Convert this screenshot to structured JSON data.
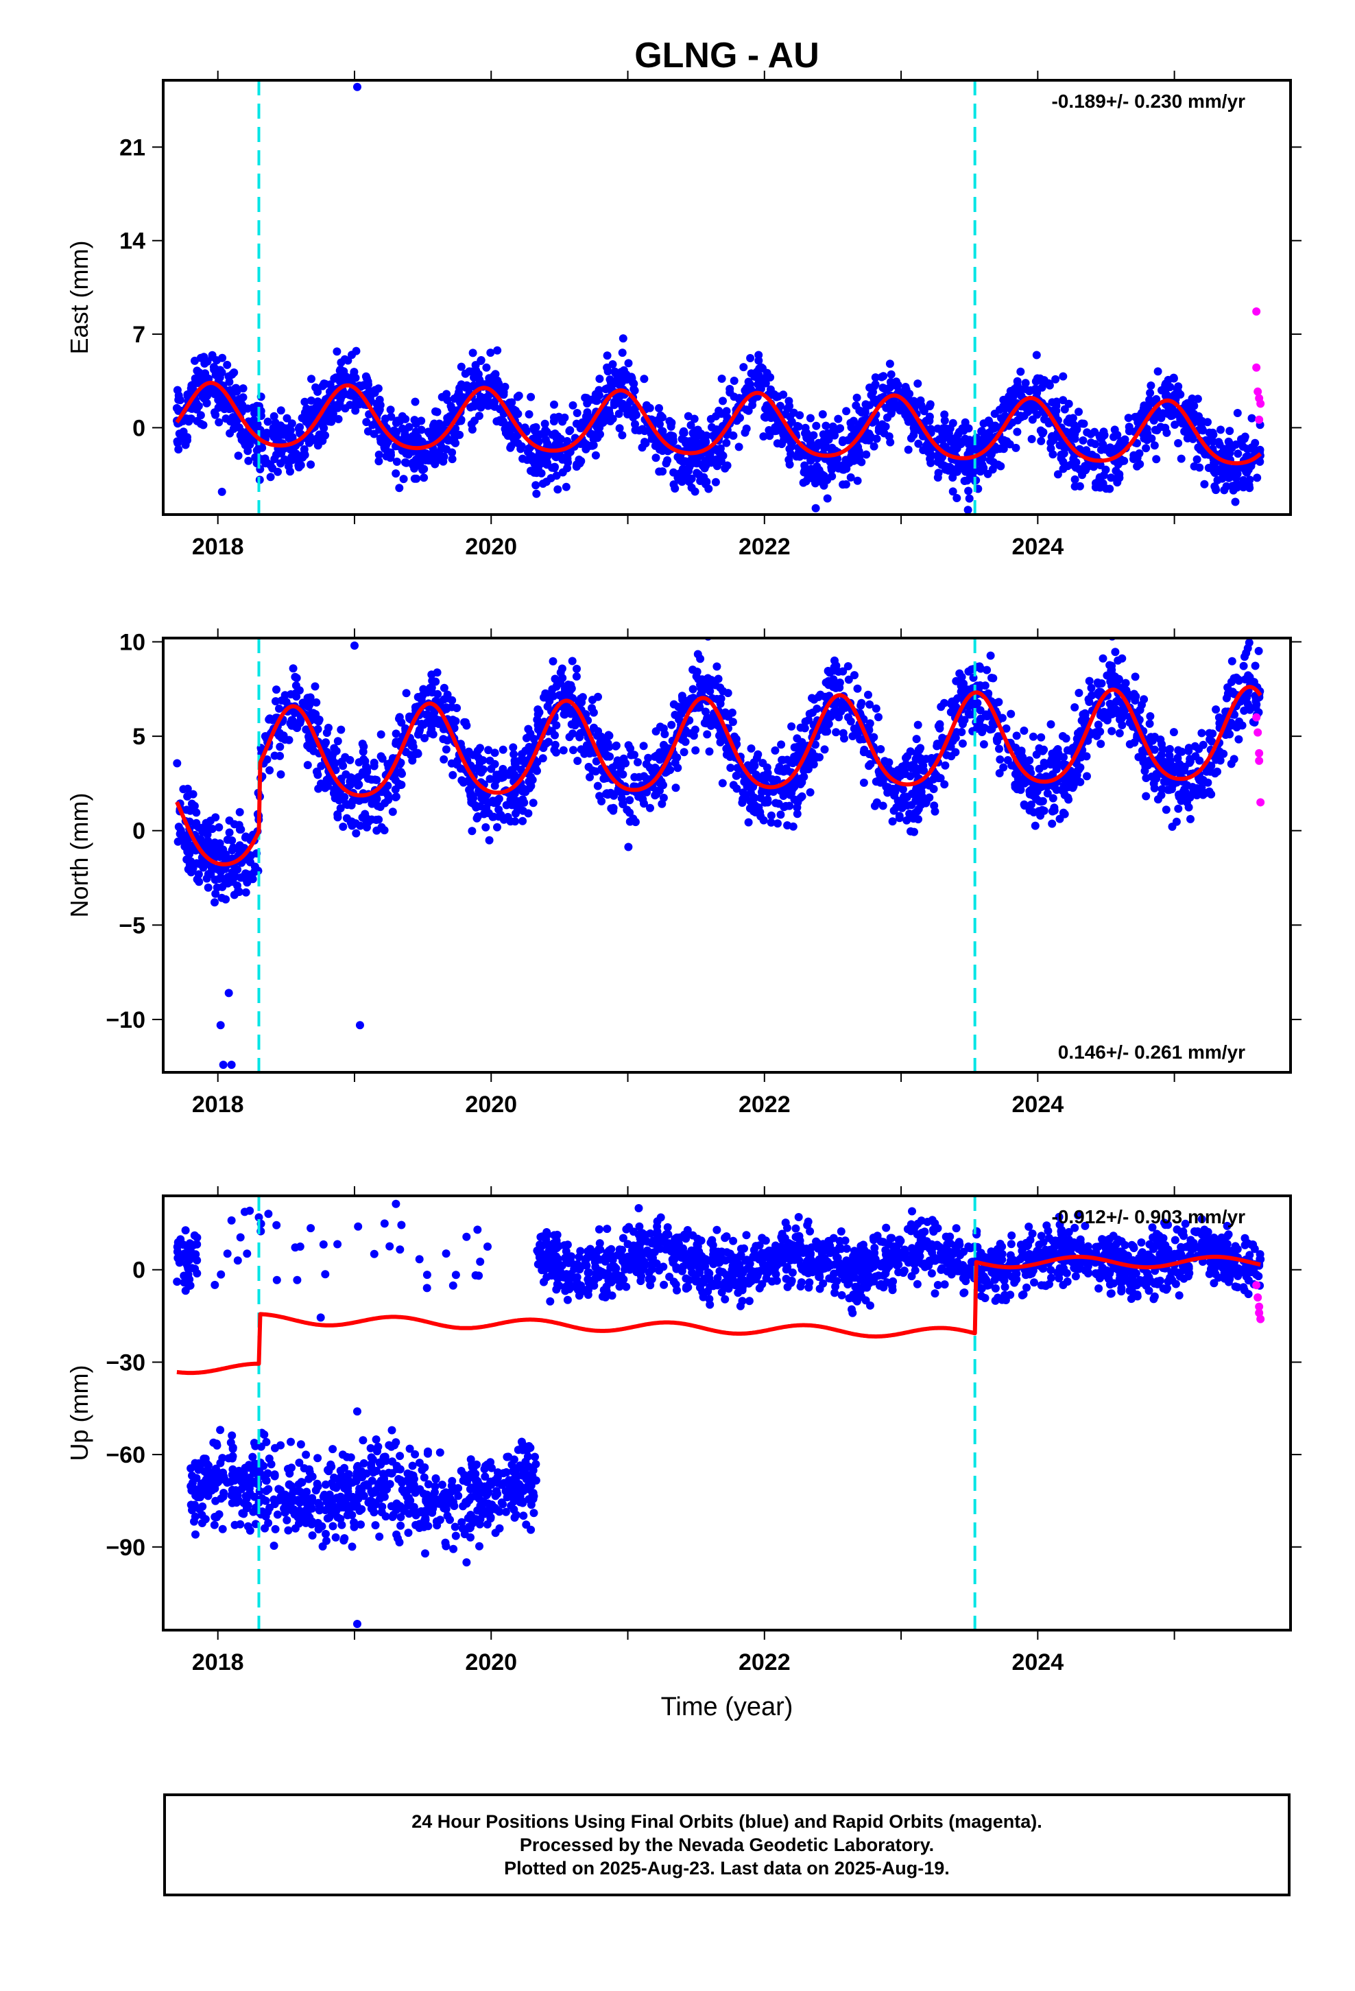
{
  "title": "GLNG - AU",
  "xlabel": "Time (year)",
  "x_ticks": [
    2018,
    2020,
    2022,
    2024
  ],
  "colors": {
    "final_points": "#0000ff",
    "rapid_points": "#ff00ff",
    "model_line": "#ff0000",
    "offset_lines": "#00e5e5",
    "frame": "#000000"
  },
  "caption": [
    "24 Hour Positions Using Final Orbits (blue) and Rapid Orbits (magenta).",
    "Processed by the Nevada Geodetic Laboratory.",
    "Plotted on 2025-Aug-23. Last data on 2025-Aug-19."
  ],
  "chart_data": [
    {
      "type": "scatter",
      "ylabel": "East (mm)",
      "xlim": [
        2017.6,
        2025.85
      ],
      "ylim": [
        -6.5,
        26
      ],
      "yticks": [
        0,
        7,
        14,
        21
      ],
      "rate_label": "-0.189+/- 0.230 mm/yr",
      "rate_label_position": "top-right",
      "offset_epochs": [
        2018.3,
        2023.54
      ],
      "data_start": 2017.7,
      "data_end": 2025.63,
      "model": {
        "mean": 0,
        "annual_amplitude": 2.3,
        "peak_phase": 0.95,
        "trend_mm_per_yr": -0.189,
        "jumps": []
      },
      "scatter_sd": 1.3,
      "outliers": [
        {
          "x": 2019.02,
          "y": 25.5
        },
        {
          "x": 2018.03,
          "y": -4.8
        },
        {
          "x": 2023.5,
          "y": -5.3
        }
      ],
      "rapid_points": [
        {
          "x": 2025.6,
          "y": 8.7
        },
        {
          "x": 2025.6,
          "y": 4.5
        },
        {
          "x": 2025.61,
          "y": 2.7
        },
        {
          "x": 2025.62,
          "y": 2.2
        },
        {
          "x": 2025.63,
          "y": 1.8
        },
        {
          "x": 2025.62,
          "y": 0.6
        }
      ]
    },
    {
      "type": "scatter",
      "ylabel": "North (mm)",
      "xlim": [
        2017.6,
        2025.85
      ],
      "ylim": [
        -12.8,
        10.2
      ],
      "yticks": [
        -10,
        -5,
        0,
        5,
        10
      ],
      "rate_label": "0.146+/- 0.261 mm/yr",
      "rate_label_position": "bottom-right",
      "offset_epochs": [
        2018.3,
        2023.54
      ],
      "data_start": 2017.7,
      "data_end": 2025.63,
      "model": {
        "mean": 0.8,
        "annual_amplitude": 2.4,
        "peak_phase": 0.55,
        "trend_mm_per_yr": 0.146,
        "jumps": [
          {
            "x": 2018.3,
            "dy": 3.5
          }
        ]
      },
      "scatter_sd": 1.1,
      "outliers": [
        {
          "x": 2019.0,
          "y": 9.8
        },
        {
          "x": 2019.04,
          "y": -10.3
        },
        {
          "x": 2018.02,
          "y": -10.3
        },
        {
          "x": 2018.04,
          "y": -12.4
        },
        {
          "x": 2018.1,
          "y": -12.4
        },
        {
          "x": 2018.08,
          "y": -8.6
        }
      ],
      "rapid_points": [
        {
          "x": 2025.6,
          "y": 6.0
        },
        {
          "x": 2025.61,
          "y": 5.2
        },
        {
          "x": 2025.62,
          "y": 4.1
        },
        {
          "x": 2025.62,
          "y": 3.7
        },
        {
          "x": 2025.63,
          "y": 1.5
        }
      ]
    },
    {
      "type": "scatter",
      "ylabel": "Up (mm)",
      "xlim": [
        2017.6,
        2025.85
      ],
      "ylim": [
        -117,
        24
      ],
      "yticks": [
        -90,
        -60,
        -30,
        0
      ],
      "rate_label": "-0.912+/- 0.903 mm/yr",
      "rate_label_position": "top-right",
      "offset_epochs": [
        2018.3,
        2023.54
      ],
      "data_start": 2017.7,
      "data_end": 2025.63,
      "model_segments": [
        {
          "x0": 2017.7,
          "x1": 2018.3,
          "level": -32,
          "amplitude": 1.5
        },
        {
          "x0": 2018.3,
          "x1": 2023.54,
          "level": -16,
          "amplitude": 1.6,
          "trend": -0.9
        },
        {
          "x0": 2023.54,
          "x1": 2025.63,
          "level": 2.5,
          "amplitude": 1.7
        }
      ],
      "point_groups": [
        {
          "x0": 2017.7,
          "x1": 2017.85,
          "mean": 6,
          "sd": 4,
          "density": 1.0
        },
        {
          "x0": 2017.8,
          "x1": 2020.33,
          "mean": -72,
          "sd": 7,
          "density": 1.0
        },
        {
          "x0": 2017.9,
          "x1": 2020.0,
          "mean": 5,
          "sd": 8,
          "density": 0.06
        },
        {
          "x0": 2020.33,
          "x1": 2025.63,
          "mean": 3,
          "sd": 5,
          "density": 1.0
        }
      ],
      "outliers": [
        {
          "x": 2019.02,
          "y": -115
        },
        {
          "x": 2019.02,
          "y": -46
        },
        {
          "x": 2019.82,
          "y": -95
        },
        {
          "x": 2021.08,
          "y": 20
        },
        {
          "x": 2018.3,
          "y": 17
        },
        {
          "x": 2018.1,
          "y": 16
        },
        {
          "x": 2019.22,
          "y": 15
        },
        {
          "x": 2019.9,
          "y": 13
        },
        {
          "x": 2023.08,
          "y": 19
        }
      ],
      "rapid_points": [
        {
          "x": 2025.6,
          "y": -5
        },
        {
          "x": 2025.61,
          "y": -9
        },
        {
          "x": 2025.62,
          "y": -12
        },
        {
          "x": 2025.62,
          "y": -14
        },
        {
          "x": 2025.63,
          "y": -16
        }
      ]
    }
  ]
}
